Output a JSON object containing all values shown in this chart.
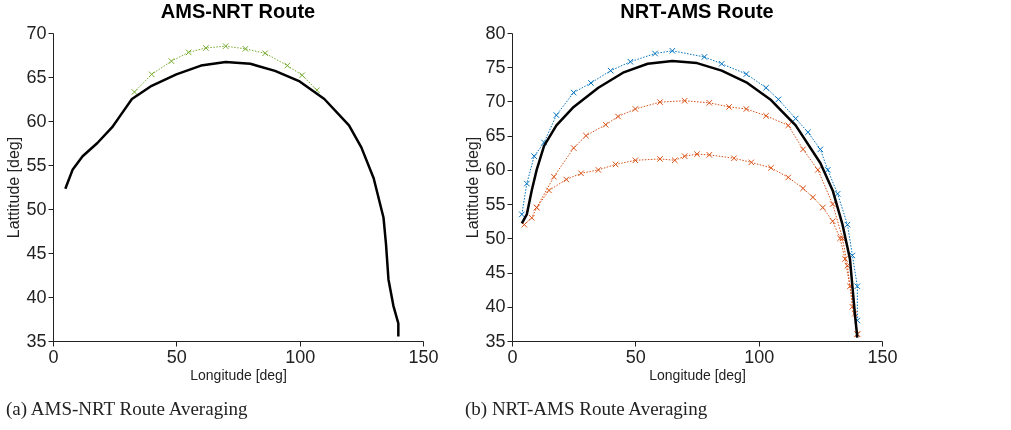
{
  "chart_data": [
    {
      "type": "line",
      "title": "AMS-NRT Route",
      "xlabel": "Longitude [deg]",
      "ylabel": "Lattitude [deg]",
      "xlim": [
        0,
        150
      ],
      "xticks": [
        0,
        50,
        100,
        150
      ],
      "ylim": [
        35,
        70
      ],
      "yticks": [
        35,
        40,
        45,
        50,
        55,
        60,
        65,
        70
      ],
      "grid": false,
      "annotations": [
        "(a) AMS-NRT Route Averaging"
      ],
      "series": [
        {
          "color": "#77ac30",
          "marker": "cross",
          "line_style": "dotted",
          "x": [
            33,
            40,
            48,
            55,
            62,
            70,
            78,
            86,
            95,
            101,
            107
          ],
          "values": [
            63.3,
            65.3,
            66.8,
            67.8,
            68.3,
            68.5,
            68.2,
            67.7,
            66.3,
            65.2,
            63.5
          ]
        },
        {
          "color": "#000000",
          "marker": "none",
          "line_style": "solid",
          "x": [
            5,
            8,
            12,
            18,
            24,
            27,
            32,
            40,
            50,
            60,
            70,
            80,
            90,
            100,
            110,
            120,
            125,
            130,
            134,
            135,
            136,
            138,
            140,
            140
          ],
          "values": [
            52.3,
            54.5,
            56,
            57.5,
            59.3,
            60.5,
            62.5,
            64,
            65.3,
            66.3,
            66.7,
            66.5,
            65.7,
            64.5,
            62.5,
            59.5,
            57,
            53.5,
            49,
            46,
            42,
            39,
            37,
            35.5
          ]
        }
      ]
    },
    {
      "type": "line",
      "title": "NRT-AMS Route",
      "xlabel": "Longitude [deg]",
      "ylabel": "Lattitude [deg]",
      "xlim": [
        0,
        150
      ],
      "xticks": [
        0,
        50,
        100,
        150
      ],
      "ylim": [
        35,
        80
      ],
      "yticks": [
        35,
        40,
        45,
        50,
        55,
        60,
        65,
        70,
        75,
        80
      ],
      "grid": false,
      "annotations": [
        "(b) NRT-AMS Route Averaging"
      ],
      "series": [
        {
          "color": "#0072bd",
          "marker": "cross",
          "line_style": "dotted",
          "x": [
            4,
            6,
            9,
            13,
            18,
            25,
            32,
            40,
            48,
            58,
            65,
            78,
            85,
            95,
            103,
            108,
            115,
            120,
            125,
            128,
            132,
            136,
            138,
            140,
            140
          ],
          "values": [
            53.5,
            58,
            62,
            64,
            68,
            71.3,
            72.7,
            74.5,
            75.8,
            77,
            77.4,
            76.5,
            75.5,
            74,
            72,
            70.3,
            67.5,
            65.5,
            63,
            60,
            56.5,
            52,
            47.5,
            43,
            38
          ]
        },
        {
          "color": "#d95319",
          "marker": "cross",
          "line_style": "dotted",
          "x": [
            5,
            8,
            10,
            17,
            25,
            30,
            38,
            43,
            50,
            60,
            70,
            80,
            88,
            95,
            103,
            112,
            118,
            124,
            130,
            134,
            136,
            138,
            140
          ],
          "values": [
            52,
            53,
            54.5,
            59,
            63.2,
            65,
            66.6,
            67.8,
            68.9,
            69.9,
            70.1,
            69.8,
            69.2,
            68.9,
            67.9,
            66.5,
            63,
            60,
            55,
            50,
            46,
            40,
            36
          ]
        },
        {
          "color": "#d95319",
          "marker": "cross",
          "line_style": "dotted",
          "x": [
            10,
            15,
            22,
            28,
            35,
            42,
            50,
            60,
            66,
            70,
            75,
            80,
            90,
            97,
            105,
            112,
            118,
            122,
            126,
            130,
            133,
            135,
            137,
            139,
            140
          ],
          "values": [
            54.5,
            57,
            58.6,
            59.5,
            60,
            60.8,
            61.4,
            61.6,
            61.4,
            62,
            62.3,
            62.2,
            61.7,
            61.1,
            60.3,
            58.9,
            57.3,
            56,
            54.5,
            52.5,
            50,
            47,
            43,
            39,
            36
          ]
        },
        {
          "color": "#000000",
          "marker": "none",
          "line_style": "solid",
          "x": [
            4,
            6,
            8,
            10,
            13,
            18,
            25,
            35,
            45,
            55,
            65,
            75,
            85,
            95,
            105,
            115,
            125,
            130,
            134,
            137,
            138,
            139,
            140
          ],
          "values": [
            52.2,
            53.5,
            57,
            60,
            63.5,
            66.5,
            69.2,
            72,
            74.2,
            75.5,
            75.9,
            75.6,
            74.5,
            72.8,
            70.2,
            66.5,
            61,
            57,
            52,
            47,
            43,
            39,
            35.5
          ]
        }
      ]
    }
  ]
}
